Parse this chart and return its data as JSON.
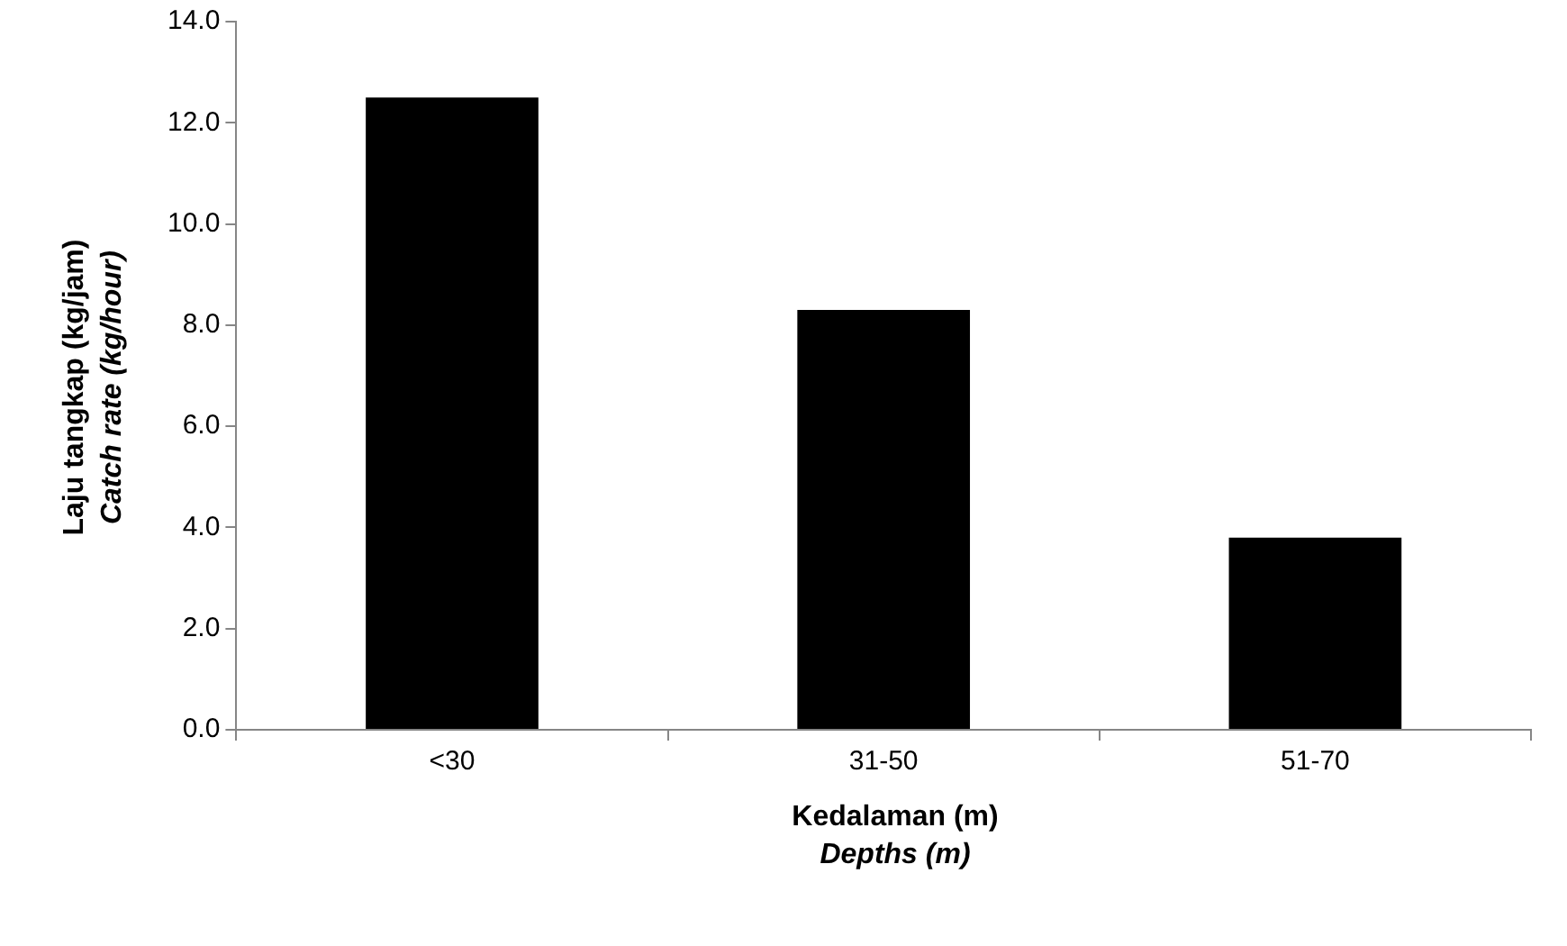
{
  "chart_data": {
    "type": "bar",
    "xlabel": "Kedalaman (m)\nDepths (m)",
    "ylabel": "Laju tangkap (kg/jam)\nCatch rate (kg/hour)",
    "categories": [
      "<30",
      "31-50",
      "51-70"
    ],
    "values": [
      12.5,
      8.3,
      3.8
    ],
    "color": "#000000",
    "ylim": [
      0,
      14
    ],
    "yticks": [
      {
        "value": 0,
        "label": "0.0"
      },
      {
        "value": 2,
        "label": "2.0"
      },
      {
        "value": 4,
        "label": "4.0"
      },
      {
        "value": 6,
        "label": "6.0"
      },
      {
        "value": 8,
        "label": "8.0"
      },
      {
        "value": 10,
        "label": "10.0"
      },
      {
        "value": 12,
        "label": "12.0"
      },
      {
        "value": 14,
        "label": "14.0"
      }
    ],
    "grid": false,
    "legend": false
  }
}
